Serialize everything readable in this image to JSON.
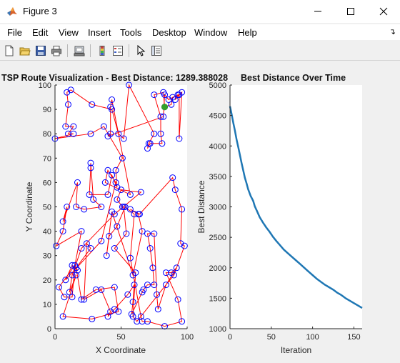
{
  "window": {
    "title": "Figure 3",
    "menu": [
      "File",
      "Edit",
      "View",
      "Insert",
      "Tools",
      "Desktop",
      "Window",
      "Help"
    ],
    "toolbar_icons": [
      "new-figure-icon",
      "open-file-icon",
      "save-icon",
      "print-icon",
      "link-figure-icon",
      "colorbar-icon",
      "legend-icon",
      "edit-plot-icon",
      "property-inspector-icon"
    ]
  },
  "chart_data": [
    {
      "type": "scatter",
      "title": "TSP Route Visualization - Best Distance: 1289.388028",
      "xlabel": "X Coordinate",
      "ylabel": "Y Coordinate",
      "xlim": [
        0,
        100
      ],
      "ylim": [
        0,
        100
      ],
      "xticks": [
        0,
        50,
        100
      ],
      "yticks": [
        0,
        10,
        20,
        30,
        40,
        50,
        60,
        70,
        80,
        90,
        100
      ],
      "marker_color": "#0000ff",
      "route_color": "#ff0000",
      "start_color": "#33a02c",
      "start_city": [
        83,
        91
      ],
      "route": [
        [
          83,
          91
        ],
        [
          82,
          97
        ],
        [
          75,
          96
        ],
        [
          80,
          87
        ],
        [
          80,
          80
        ],
        [
          81,
          76
        ],
        [
          72,
          76
        ],
        [
          70,
          74
        ],
        [
          71,
          76
        ],
        [
          75,
          80
        ],
        [
          56,
          100
        ],
        [
          52,
          78
        ],
        [
          48,
          80
        ],
        [
          43,
          90
        ],
        [
          28,
          92
        ],
        [
          12,
          98
        ],
        [
          9,
          97
        ],
        [
          10,
          92
        ],
        [
          8,
          83
        ],
        [
          14,
          83
        ],
        [
          10,
          80
        ],
        [
          14,
          80
        ],
        [
          0,
          78
        ],
        [
          27,
          80
        ],
        [
          37,
          83
        ],
        [
          51,
          70
        ],
        [
          46,
          65
        ],
        [
          47,
          58
        ],
        [
          43,
          63
        ],
        [
          40,
          55
        ],
        [
          26,
          55
        ],
        [
          27,
          66
        ],
        [
          27,
          68
        ],
        [
          29,
          53
        ],
        [
          35,
          50
        ],
        [
          22,
          49
        ],
        [
          16,
          50
        ],
        [
          17,
          60
        ],
        [
          6,
          44
        ],
        [
          9,
          50
        ],
        [
          6,
          40
        ],
        [
          1,
          34
        ],
        [
          20,
          40
        ],
        [
          15,
          26
        ],
        [
          3,
          17
        ],
        [
          7,
          13
        ],
        [
          13,
          13
        ],
        [
          15,
          26
        ],
        [
          17,
          24
        ],
        [
          16,
          25
        ],
        [
          27,
          33
        ],
        [
          24,
          35
        ],
        [
          22,
          12
        ],
        [
          35,
          16
        ],
        [
          42,
          7
        ],
        [
          40,
          5
        ],
        [
          45,
          8
        ],
        [
          55,
          14
        ],
        [
          60,
          18
        ],
        [
          59,
          11
        ],
        [
          58,
          6
        ],
        [
          66,
          15
        ],
        [
          67,
          16
        ],
        [
          70,
          18
        ],
        [
          75,
          18
        ],
        [
          74,
          25
        ],
        [
          72,
          33
        ],
        [
          70,
          39
        ],
        [
          75,
          39
        ],
        [
          77,
          14
        ],
        [
          78,
          8
        ],
        [
          84,
          18
        ],
        [
          92,
          25
        ],
        [
          88,
          23
        ],
        [
          84,
          23
        ],
        [
          93,
          12
        ],
        [
          96,
          3
        ],
        [
          83,
          1
        ],
        [
          70,
          3
        ],
        [
          66,
          3
        ],
        [
          65,
          5
        ],
        [
          57,
          29
        ],
        [
          60,
          47
        ],
        [
          53,
          50
        ],
        [
          47,
          42
        ],
        [
          41,
          38
        ],
        [
          39,
          30
        ],
        [
          43,
          48
        ],
        [
          59,
          22
        ],
        [
          66,
          40
        ],
        [
          63,
          47
        ],
        [
          57,
          49
        ],
        [
          64,
          47
        ],
        [
          64,
          47
        ],
        [
          89,
          62
        ],
        [
          91,
          57
        ],
        [
          96,
          49
        ],
        [
          95,
          35
        ],
        [
          98,
          34
        ],
        [
          90,
          22
        ],
        [
          84,
          18
        ],
        [
          62,
          3
        ],
        [
          59,
          5
        ],
        [
          61,
          23
        ],
        [
          45,
          33
        ],
        [
          54,
          39
        ],
        [
          52,
          50
        ],
        [
          51,
          50
        ],
        [
          47,
          53
        ],
        [
          50,
          57
        ],
        [
          65,
          56
        ],
        [
          45,
          47
        ],
        [
          20,
          33
        ],
        [
          20,
          33
        ],
        [
          13,
          22
        ],
        [
          11,
          15
        ],
        [
          16,
          22
        ],
        [
          6,
          5
        ],
        [
          28,
          4
        ],
        [
          48,
          7
        ],
        [
          45,
          17
        ],
        [
          31,
          16
        ],
        [
          20,
          12
        ],
        [
          16,
          25
        ],
        [
          13,
          26
        ],
        [
          8,
          20
        ],
        [
          35,
          36
        ],
        [
          46,
          60
        ],
        [
          40,
          65
        ],
        [
          38,
          60
        ],
        [
          57,
          55
        ],
        [
          43,
          94
        ],
        [
          42,
          91
        ],
        [
          42,
          80
        ],
        [
          40,
          79
        ],
        [
          82,
          87
        ],
        [
          83,
          96
        ],
        [
          86,
          94
        ],
        [
          93,
          96
        ],
        [
          91,
          94
        ],
        [
          96,
          97
        ],
        [
          94,
          78
        ],
        [
          94,
          96
        ],
        [
          89,
          95
        ],
        [
          88,
          92
        ],
        [
          83,
          91
        ]
      ]
    },
    {
      "type": "line",
      "title": "Best Distance Over Time",
      "xlabel": "Iteration",
      "ylabel": "Best Distance",
      "xlim": [
        0,
        160
      ],
      "ylim": [
        1000,
        5000
      ],
      "xticks": [
        0,
        50,
        100,
        150
      ],
      "yticks": [
        1000,
        1500,
        2000,
        2500,
        3000,
        3500,
        4000,
        4500,
        5000
      ],
      "line_color": "#1f77b4",
      "x": [
        0,
        2,
        4,
        6,
        8,
        10,
        12,
        14,
        16,
        18,
        20,
        22,
        25,
        28,
        30,
        33,
        36,
        40,
        44,
        48,
        52,
        56,
        60,
        65,
        70,
        75,
        80,
        85,
        90,
        95,
        100,
        105,
        110,
        115,
        120,
        125,
        130,
        135,
        140,
        145,
        150,
        155,
        160
      ],
      "y": [
        4650,
        4520,
        4380,
        4250,
        4100,
        3980,
        3850,
        3720,
        3600,
        3480,
        3390,
        3290,
        3180,
        3100,
        3010,
        2920,
        2830,
        2740,
        2660,
        2590,
        2510,
        2440,
        2380,
        2300,
        2240,
        2180,
        2120,
        2060,
        2000,
        1940,
        1880,
        1820,
        1770,
        1720,
        1680,
        1640,
        1590,
        1550,
        1500,
        1460,
        1420,
        1380,
        1340
      ]
    }
  ]
}
